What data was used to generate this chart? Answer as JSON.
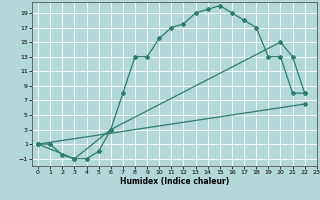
{
  "title": "",
  "xlabel": "Humidex (Indice chaleur)",
  "line_color": "#2e7d6e",
  "bg_color": "#b2d8d8",
  "grid_color": "#ffffff",
  "xlim": [
    -0.5,
    23
  ],
  "ylim": [
    -2,
    20.5
  ],
  "xticks": [
    0,
    1,
    2,
    3,
    4,
    5,
    6,
    7,
    8,
    9,
    10,
    11,
    12,
    13,
    14,
    15,
    16,
    17,
    18,
    19,
    20,
    21,
    22,
    23
  ],
  "yticks": [
    -1,
    1,
    3,
    5,
    7,
    9,
    11,
    13,
    15,
    17,
    19
  ],
  "line1": [
    [
      0,
      1
    ],
    [
      1,
      1
    ],
    [
      2,
      -0.5
    ],
    [
      3,
      -1
    ],
    [
      4,
      -1
    ],
    [
      5,
      0
    ],
    [
      6,
      3
    ],
    [
      7,
      8
    ],
    [
      8,
      13
    ],
    [
      9,
      13
    ],
    [
      10,
      15.5
    ],
    [
      11,
      17
    ],
    [
      12,
      17.5
    ],
    [
      13,
      19
    ],
    [
      14,
      19.5
    ],
    [
      15,
      20
    ],
    [
      16,
      19
    ],
    [
      17,
      18
    ],
    [
      18,
      17
    ],
    [
      19,
      13
    ],
    [
      20,
      13
    ],
    [
      21,
      8
    ],
    [
      22,
      8
    ]
  ],
  "line2": [
    [
      0,
      1
    ],
    [
      3,
      -1
    ],
    [
      6,
      3
    ],
    [
      20,
      15
    ],
    [
      21,
      13
    ],
    [
      22,
      8
    ]
  ],
  "line3": [
    [
      0,
      1
    ],
    [
      22,
      6.5
    ]
  ]
}
